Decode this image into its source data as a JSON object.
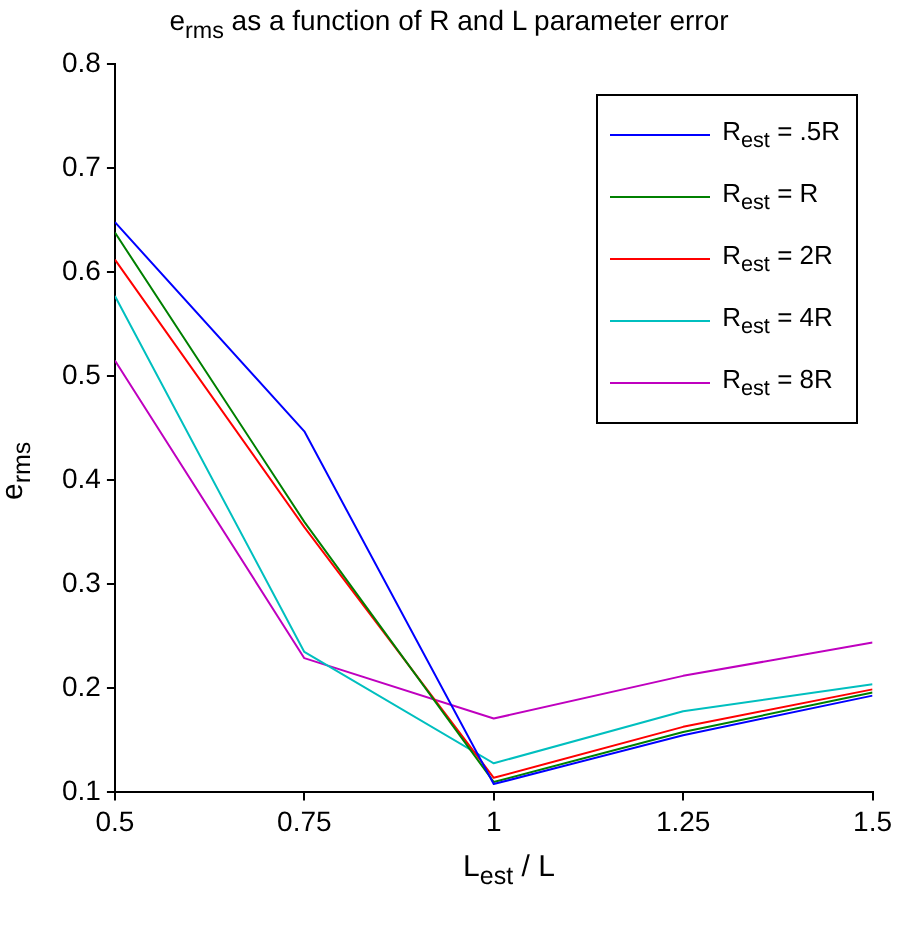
{
  "chart_data": {
    "type": "line",
    "title": "e$_{rms}$ as a function of R and L parameter error",
    "xlabel": "L$_{est}$ / L",
    "ylabel": "e$_{rms}$",
    "x": [
      0.5,
      0.75,
      1,
      1.25,
      1.5
    ],
    "xlim": [
      0.5,
      1.5
    ],
    "xticks": [
      0.5,
      0.75,
      1,
      1.25,
      1.5
    ],
    "ylim": [
      0.1,
      0.8
    ],
    "yticks": [
      0.1,
      0.2,
      0.3,
      0.4,
      0.5,
      0.6,
      0.7,
      0.8
    ],
    "grid": false,
    "legend": "top right",
    "marker": "none",
    "line_style": "solid",
    "series": [
      {
        "name": "R$_{est}$ = .5R",
        "color": "#0000ff",
        "values": [
          0.648,
          0.447,
          0.108,
          0.155,
          0.193
        ]
      },
      {
        "name": "R$_{est}$ = R",
        "color": "#008000",
        "values": [
          0.638,
          0.36,
          0.11,
          0.158,
          0.196
        ]
      },
      {
        "name": "R$_{est}$ = 2R",
        "color": "#ff0000",
        "values": [
          0.612,
          0.355,
          0.114,
          0.163,
          0.199
        ]
      },
      {
        "name": "R$_{est}$ = 4R",
        "color": "#00bfbf",
        "values": [
          0.577,
          0.235,
          0.128,
          0.178,
          0.204
        ]
      },
      {
        "name": "R$_{est}$ = 8R",
        "color": "#bf00bf",
        "values": [
          0.515,
          0.229,
          0.171,
          0.212,
          0.244
        ]
      }
    ]
  }
}
